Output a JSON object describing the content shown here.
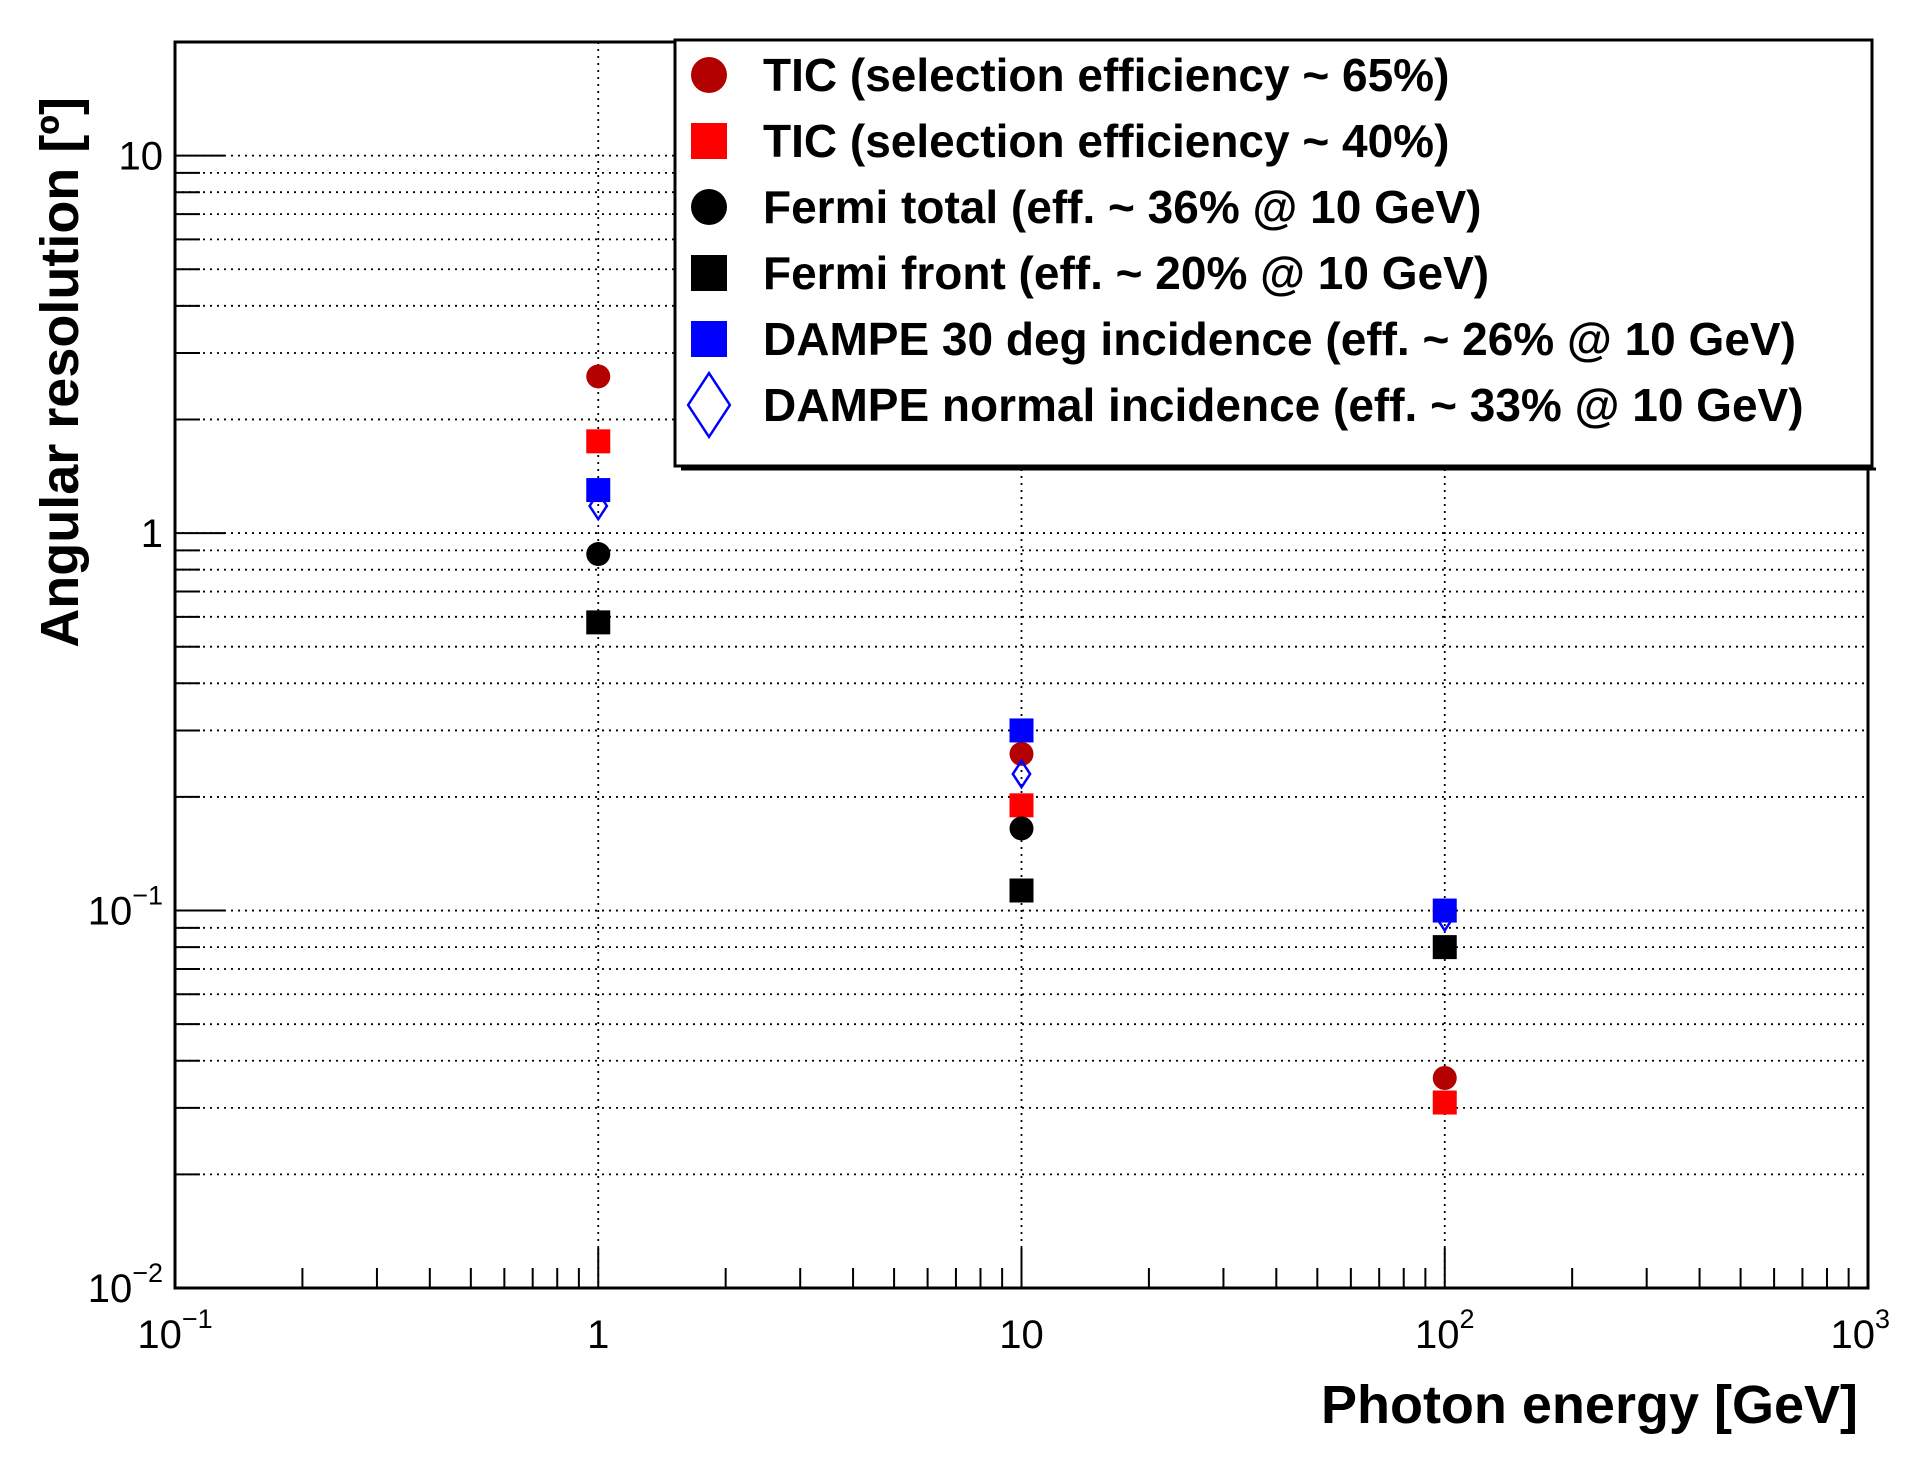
{
  "chart_data": {
    "type": "scatter",
    "title": "",
    "xlabel": "Photon energy [GeV]",
    "ylabel": "Angular resolution [º]",
    "xscale": "log",
    "yscale": "log",
    "xlim": [
      0.1,
      1000
    ],
    "ylim": [
      0.01,
      20
    ],
    "grid": true,
    "legend_position": "top-right",
    "x_ticks": [
      {
        "base": "10",
        "exp": "−1"
      },
      {
        "base": "1",
        "exp": ""
      },
      {
        "base": "10",
        "exp": ""
      },
      {
        "base": "10",
        "exp": "2"
      },
      {
        "base": "10",
        "exp": "3"
      }
    ],
    "y_ticks": [
      {
        "base": "10",
        "exp": "−2"
      },
      {
        "base": "10",
        "exp": "−1"
      },
      {
        "base": "1",
        "exp": ""
      },
      {
        "base": "10",
        "exp": ""
      }
    ],
    "series": [
      {
        "name": "TIC (selection efficiency ~ 65%)",
        "marker": "circle",
        "color": "#b30000",
        "x": [
          1,
          10,
          100
        ],
        "y": [
          2.6,
          0.26,
          0.036
        ]
      },
      {
        "name": "TIC (selection efficiency ~ 40%)",
        "marker": "square",
        "color": "#ff0000",
        "x": [
          1,
          10,
          100
        ],
        "y": [
          1.75,
          0.19,
          0.031
        ]
      },
      {
        "name": "Fermi total (eff. ~ 36% @ 10 GeV)",
        "marker": "circle",
        "color": "#000000",
        "x": [
          1,
          10,
          100
        ],
        "y": [
          0.88,
          0.165,
          0.1
        ]
      },
      {
        "name": "Fermi front (eff. ~ 20% @ 10 GeV)",
        "marker": "square",
        "color": "#000000",
        "x": [
          1,
          10,
          100
        ],
        "y": [
          0.58,
          0.113,
          0.08
        ]
      },
      {
        "name": "DAMPE 30 deg incidence (eff. ~ 26% @ 10 GeV)",
        "marker": "square",
        "color": "#0000ff",
        "x": [
          1,
          10,
          100
        ],
        "y": [
          1.3,
          0.3,
          0.1
        ]
      },
      {
        "name": "DAMPE normal incidence (eff. ~ 33% @ 10 GeV)",
        "marker": "diamond-open",
        "color": "#0000ff",
        "x": [
          1,
          10,
          100
        ],
        "y": [
          1.18,
          0.23,
          0.096
        ]
      }
    ]
  }
}
